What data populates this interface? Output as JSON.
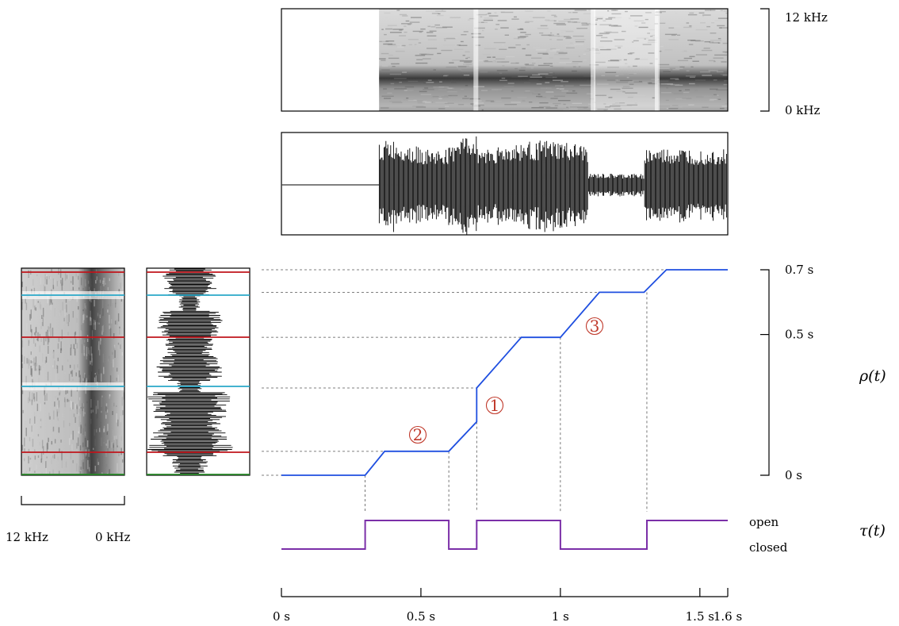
{
  "colors": {
    "rho_curve": "#1f4fe0",
    "tau_curve": "#7b2fa8",
    "red_line": "#c0151b",
    "cyan_line": "#2aa8c8",
    "green_line": "#2a8a2a",
    "annotation": "#c0392b"
  },
  "spectrogram_top": {
    "freq_top_label": "12 kHz",
    "freq_bottom_label": "0 kHz"
  },
  "spectrogram_left": {
    "left_label": "12 kHz",
    "right_label": "0 kHz"
  },
  "rho": {
    "label": "ρ(t)",
    "ticks": [
      "0 s",
      "0.5 s",
      "0.7 s"
    ],
    "points": [
      [
        0,
        0
      ],
      [
        0.3,
        0
      ],
      [
        0.37,
        0.085
      ],
      [
        0.6,
        0.085
      ],
      [
        0.7,
        0.19
      ],
      [
        0.7,
        0.31
      ],
      [
        0.86,
        0.49
      ],
      [
        1.0,
        0.49
      ],
      [
        1.14,
        0.65
      ],
      [
        1.3,
        0.65
      ],
      [
        1.38,
        0.73
      ],
      [
        1.6,
        0.73
      ]
    ]
  },
  "tau": {
    "label": "τ(t)",
    "open_label": "open",
    "closed_label": "closed",
    "segments": [
      {
        "from": 0.0,
        "to": 0.3,
        "state": "closed"
      },
      {
        "from": 0.3,
        "to": 0.6,
        "state": "open"
      },
      {
        "from": 0.6,
        "to": 0.7,
        "state": "closed"
      },
      {
        "from": 0.7,
        "to": 1.0,
        "state": "open"
      },
      {
        "from": 1.0,
        "to": 1.31,
        "state": "closed"
      },
      {
        "from": 1.31,
        "to": 1.6,
        "state": "open"
      }
    ]
  },
  "time_axis": {
    "ticks": [
      "0 s",
      "0.5 s",
      "1 s",
      "1.5 s",
      "1.6 s"
    ],
    "tick_values": [
      0,
      0.5,
      1.0,
      1.5,
      1.6
    ]
  },
  "annotations": [
    "1",
    "2",
    "3"
  ]
}
